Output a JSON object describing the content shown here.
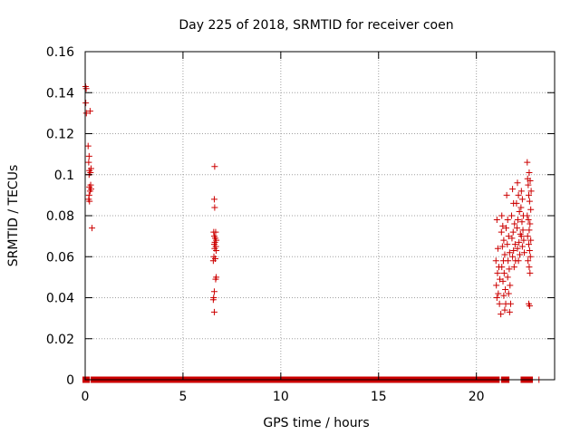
{
  "chart_data": {
    "type": "scatter",
    "title": "Day 225 of 2018, SRMTID for receiver coen",
    "xlabel": "GPS time / hours",
    "ylabel": "SRMTID / TECUs",
    "xlim": [
      0,
      24
    ],
    "ylim": [
      0,
      0.16
    ],
    "grid": true,
    "xticks": [
      0,
      5,
      10,
      15,
      20
    ],
    "xtick_labels": [
      "0",
      "5",
      "10",
      "15",
      "20"
    ],
    "yticks": [
      0,
      0.02,
      0.04,
      0.06,
      0.08,
      0.1,
      0.12,
      0.14,
      0.16
    ],
    "ytick_labels": [
      "0",
      "0.02",
      "0.04",
      "0.06",
      "0.08",
      "0.1",
      "0.12",
      "0.14",
      "0.16"
    ],
    "marker_color": "#cc0000",
    "series": [
      {
        "name": "SRMTID",
        "points": [
          [
            0.02,
            0.143
          ],
          [
            0.05,
            0.142
          ],
          [
            0.03,
            0.135
          ],
          [
            0.06,
            0.13
          ],
          [
            0.25,
            0.131
          ],
          [
            0.15,
            0.114
          ],
          [
            0.2,
            0.109
          ],
          [
            0.18,
            0.106
          ],
          [
            0.3,
            0.103
          ],
          [
            0.22,
            0.102
          ],
          [
            0.27,
            0.101
          ],
          [
            0.2,
            0.1
          ],
          [
            0.28,
            0.095
          ],
          [
            0.22,
            0.094
          ],
          [
            0.3,
            0.093
          ],
          [
            0.25,
            0.092
          ],
          [
            0.2,
            0.09
          ],
          [
            0.18,
            0.088
          ],
          [
            0.22,
            0.087
          ],
          [
            0.35,
            0.074
          ],
          [
            6.62,
            0.104
          ],
          [
            6.6,
            0.088
          ],
          [
            6.62,
            0.084
          ],
          [
            6.57,
            0.072
          ],
          [
            6.67,
            0.072
          ],
          [
            6.6,
            0.07
          ],
          [
            6.65,
            0.069
          ],
          [
            6.7,
            0.068
          ],
          [
            6.63,
            0.067
          ],
          [
            6.6,
            0.066
          ],
          [
            6.68,
            0.065
          ],
          [
            6.62,
            0.064
          ],
          [
            6.7,
            0.063
          ],
          [
            6.58,
            0.06
          ],
          [
            6.65,
            0.059
          ],
          [
            6.55,
            0.058
          ],
          [
            6.7,
            0.05
          ],
          [
            6.67,
            0.049
          ],
          [
            6.6,
            0.043
          ],
          [
            6.57,
            0.04
          ],
          [
            6.55,
            0.039
          ],
          [
            6.6,
            0.033
          ],
          [
            21.05,
            0.078
          ],
          [
            21.1,
            0.064
          ],
          [
            21.0,
            0.058
          ],
          [
            21.15,
            0.055
          ],
          [
            21.08,
            0.052
          ],
          [
            21.2,
            0.049
          ],
          [
            21.02,
            0.046
          ],
          [
            21.12,
            0.042
          ],
          [
            21.05,
            0.04
          ],
          [
            21.18,
            0.037
          ],
          [
            21.25,
            0.032
          ],
          [
            21.3,
            0.08
          ],
          [
            21.35,
            0.075
          ],
          [
            21.28,
            0.072
          ],
          [
            21.4,
            0.068
          ],
          [
            21.33,
            0.065
          ],
          [
            21.45,
            0.061
          ],
          [
            21.38,
            0.058
          ],
          [
            21.3,
            0.055
          ],
          [
            21.42,
            0.052
          ],
          [
            21.36,
            0.048
          ],
          [
            21.48,
            0.044
          ],
          [
            21.4,
            0.041
          ],
          [
            21.5,
            0.037
          ],
          [
            21.45,
            0.034
          ],
          [
            21.55,
            0.09
          ],
          [
            21.6,
            0.078
          ],
          [
            21.52,
            0.074
          ],
          [
            21.65,
            0.07
          ],
          [
            21.58,
            0.066
          ],
          [
            21.7,
            0.062
          ],
          [
            21.62,
            0.058
          ],
          [
            21.68,
            0.054
          ],
          [
            21.6,
            0.05
          ],
          [
            21.72,
            0.046
          ],
          [
            21.65,
            0.042
          ],
          [
            21.75,
            0.037
          ],
          [
            21.7,
            0.033
          ],
          [
            21.85,
            0.093
          ],
          [
            21.9,
            0.086
          ],
          [
            21.8,
            0.08
          ],
          [
            21.95,
            0.076
          ],
          [
            21.88,
            0.072
          ],
          [
            21.82,
            0.069
          ],
          [
            21.98,
            0.066
          ],
          [
            21.9,
            0.063
          ],
          [
            21.85,
            0.06
          ],
          [
            22.0,
            0.058
          ],
          [
            21.93,
            0.055
          ],
          [
            22.1,
            0.096
          ],
          [
            22.15,
            0.09
          ],
          [
            22.05,
            0.086
          ],
          [
            22.2,
            0.082
          ],
          [
            22.12,
            0.078
          ],
          [
            22.08,
            0.074
          ],
          [
            22.25,
            0.071
          ],
          [
            22.18,
            0.067
          ],
          [
            22.1,
            0.064
          ],
          [
            22.22,
            0.061
          ],
          [
            22.15,
            0.058
          ],
          [
            22.3,
            0.092
          ],
          [
            22.35,
            0.088
          ],
          [
            22.28,
            0.084
          ],
          [
            22.4,
            0.08
          ],
          [
            22.33,
            0.077
          ],
          [
            22.38,
            0.073
          ],
          [
            22.3,
            0.07
          ],
          [
            22.42,
            0.068
          ],
          [
            22.35,
            0.065
          ],
          [
            22.45,
            0.062
          ],
          [
            22.6,
            0.106
          ],
          [
            22.7,
            0.101
          ],
          [
            22.62,
            0.098
          ],
          [
            22.75,
            0.097
          ],
          [
            22.65,
            0.095
          ],
          [
            22.8,
            0.092
          ],
          [
            22.68,
            0.09
          ],
          [
            22.72,
            0.087
          ],
          [
            22.78,
            0.083
          ],
          [
            22.6,
            0.08
          ],
          [
            22.66,
            0.078
          ],
          [
            22.74,
            0.076
          ],
          [
            22.7,
            0.073
          ],
          [
            22.62,
            0.07
          ],
          [
            22.78,
            0.068
          ],
          [
            22.68,
            0.066
          ],
          [
            22.72,
            0.063
          ],
          [
            22.76,
            0.06
          ],
          [
            22.64,
            0.058
          ],
          [
            22.7,
            0.055
          ],
          [
            22.74,
            0.052
          ],
          [
            22.68,
            0.037
          ],
          [
            22.72,
            0.036
          ]
        ],
        "zero_runs": [
          [
            0.0,
            0.1
          ],
          [
            0.42,
            6.55
          ],
          [
            6.75,
            21.05
          ],
          [
            21.4,
            21.55
          ],
          [
            22.4,
            22.5
          ],
          [
            22.6,
            22.75
          ]
        ],
        "zero_points": [
          23.2
        ]
      }
    ]
  }
}
